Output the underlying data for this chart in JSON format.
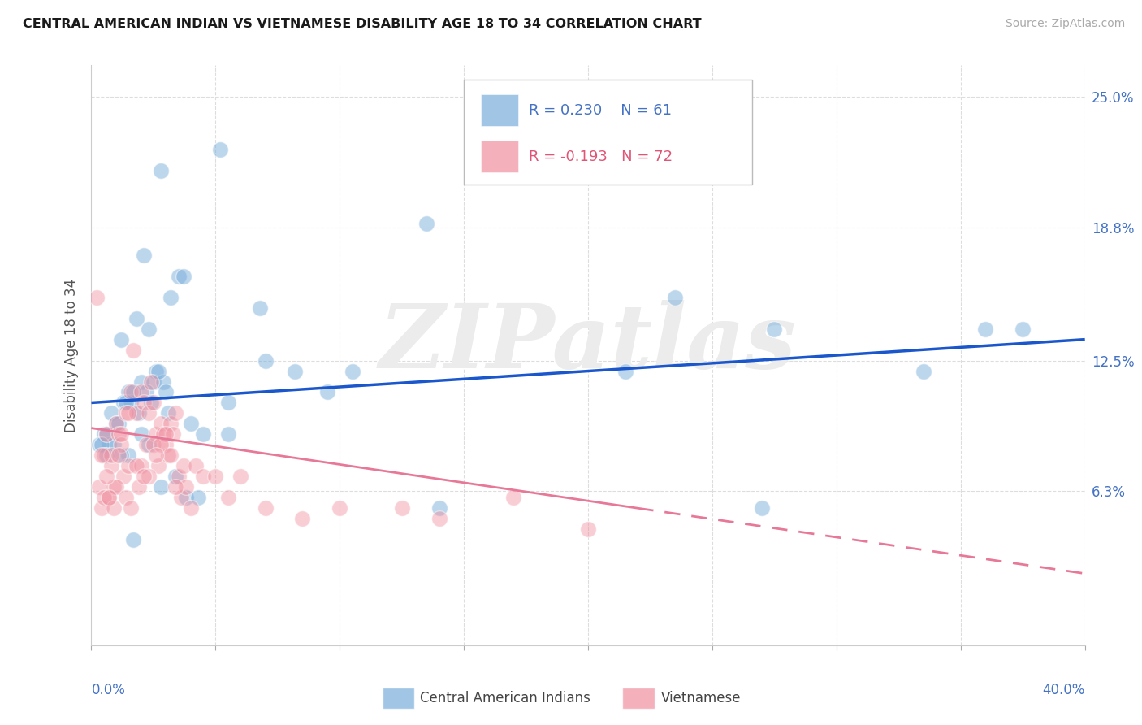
{
  "title": "CENTRAL AMERICAN INDIAN VS VIETNAMESE DISABILITY AGE 18 TO 34 CORRELATION CHART",
  "source": "Source: ZipAtlas.com",
  "ylabel": "Disability Age 18 to 34",
  "ytick_labels": [
    "6.3%",
    "12.5%",
    "18.8%",
    "25.0%"
  ],
  "ytick_values": [
    6.3,
    12.5,
    18.8,
    25.0
  ],
  "xmin": 0.0,
  "xmax": 40.0,
  "ymin": -1.0,
  "ymax": 26.5,
  "legend_r1": "R = 0.230",
  "legend_n1": "N = 61",
  "legend_r2": "R = -0.193",
  "legend_n2": "N = 72",
  "blue_color": "#7aaedb",
  "pink_color": "#f090a0",
  "blue_line_color": "#1a56cc",
  "pink_line_color": "#e87898",
  "watermark": "ZIPatlas",
  "blue_scatter_x": [
    1.2,
    2.8,
    2.1,
    3.5,
    5.2,
    2.3,
    1.8,
    3.2,
    2.6,
    1.5,
    2.0,
    2.5,
    1.3,
    0.8,
    1.0,
    1.6,
    2.2,
    2.9,
    1.4,
    0.5,
    0.7,
    1.1,
    1.9,
    2.4,
    3.0,
    3.7,
    0.3,
    0.6,
    1.7,
    2.7,
    3.4,
    4.0,
    10.5,
    13.5,
    4.5,
    5.5,
    6.8,
    8.2,
    21.5,
    23.5,
    27.5,
    33.5,
    36.0,
    2.0,
    1.5,
    0.9,
    1.2,
    0.4,
    0.6,
    2.3,
    3.1,
    3.8,
    4.3,
    2.8,
    1.7,
    5.5,
    7.0,
    9.5,
    14.0,
    27.0,
    37.5
  ],
  "blue_scatter_y": [
    13.5,
    21.5,
    17.5,
    16.5,
    22.5,
    14.0,
    14.5,
    15.5,
    12.0,
    11.0,
    11.5,
    11.5,
    10.5,
    10.0,
    9.5,
    10.5,
    11.0,
    11.5,
    10.5,
    9.0,
    8.5,
    9.5,
    10.0,
    10.5,
    11.0,
    16.5,
    8.5,
    9.0,
    11.0,
    12.0,
    7.0,
    9.5,
    12.0,
    19.0,
    9.0,
    10.5,
    15.0,
    12.0,
    12.0,
    15.5,
    14.0,
    12.0,
    14.0,
    9.0,
    8.0,
    8.5,
    8.0,
    8.5,
    8.0,
    8.5,
    10.0,
    6.0,
    6.0,
    6.5,
    4.0,
    9.0,
    12.5,
    11.0,
    5.5,
    5.5,
    14.0
  ],
  "pink_scatter_x": [
    0.2,
    0.3,
    0.4,
    0.5,
    0.6,
    0.7,
    0.8,
    0.9,
    1.0,
    1.1,
    1.2,
    1.3,
    1.4,
    1.5,
    1.6,
    1.7,
    1.8,
    1.9,
    2.0,
    2.1,
    2.2,
    2.3,
    2.4,
    2.5,
    2.6,
    2.7,
    2.8,
    2.9,
    3.0,
    3.1,
    3.2,
    3.3,
    3.4,
    3.5,
    3.6,
    3.7,
    3.8,
    4.0,
    4.2,
    4.5,
    5.0,
    5.5,
    6.0,
    7.0,
    8.5,
    10.0,
    12.5,
    14.0,
    17.0,
    20.0,
    0.5,
    0.8,
    1.0,
    1.2,
    1.5,
    2.0,
    2.5,
    3.0,
    0.6,
    0.9,
    1.4,
    1.8,
    2.3,
    2.8,
    3.2,
    0.4,
    0.7,
    1.1,
    1.6,
    2.1,
    2.6,
    3.4
  ],
  "pink_scatter_y": [
    15.5,
    6.5,
    5.5,
    8.0,
    9.0,
    6.0,
    7.5,
    6.5,
    9.5,
    9.0,
    8.5,
    7.0,
    10.0,
    7.5,
    11.0,
    13.0,
    10.0,
    6.5,
    11.0,
    10.5,
    8.5,
    10.0,
    11.5,
    10.5,
    9.0,
    7.5,
    9.5,
    9.0,
    8.5,
    8.0,
    9.5,
    9.0,
    10.0,
    7.0,
    6.0,
    7.5,
    6.5,
    5.5,
    7.5,
    7.0,
    7.0,
    6.0,
    7.0,
    5.5,
    5.0,
    5.5,
    5.5,
    5.0,
    6.0,
    4.5,
    6.0,
    8.0,
    6.5,
    9.0,
    10.0,
    7.5,
    8.5,
    9.0,
    7.0,
    5.5,
    6.0,
    7.5,
    7.0,
    8.5,
    8.0,
    8.0,
    6.0,
    8.0,
    5.5,
    7.0,
    8.0,
    6.5
  ],
  "blue_line_x0": 0.0,
  "blue_line_x1": 40.0,
  "blue_line_y0": 10.5,
  "blue_line_y1": 13.5,
  "pink_line_x0": 0.0,
  "pink_line_x1": 22.0,
  "pink_line_y0": 9.3,
  "pink_line_y1": 5.5,
  "pink_dash_x0": 22.0,
  "pink_dash_x1": 40.0,
  "pink_dash_y0": 5.5,
  "pink_dash_y1": 2.4
}
